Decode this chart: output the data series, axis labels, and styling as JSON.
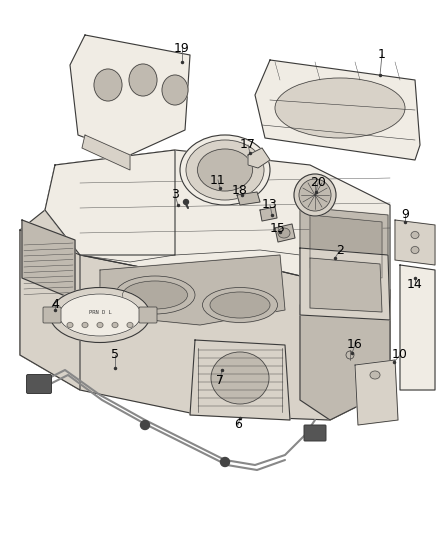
{
  "bg_color": "#ffffff",
  "line_color": "#3a3a3a",
  "label_color": "#000000",
  "font_size": 9,
  "leader_color": "#555555",
  "fill_main": "#f0ece4",
  "fill_dark": "#d8d2c8",
  "fill_darker": "#c0bab0",
  "fill_shadow": "#b0aaa0"
}
